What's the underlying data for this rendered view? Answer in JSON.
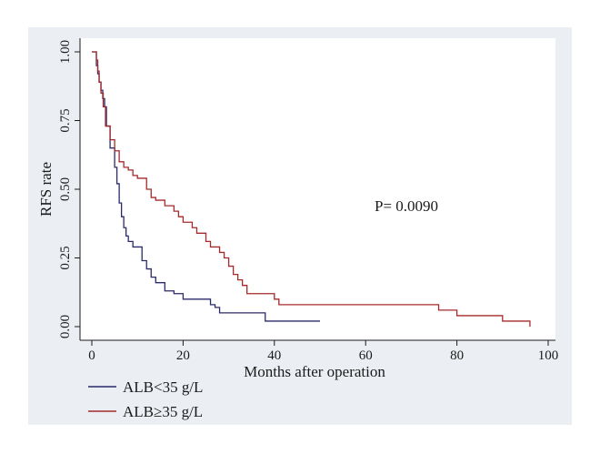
{
  "chart_data": {
    "type": "line",
    "step": true,
    "title": "",
    "xlabel": "Months after operation",
    "ylabel": "RFS rate",
    "xlim": [
      0,
      100
    ],
    "ylim": [
      0,
      1
    ],
    "xticks": [
      0,
      20,
      40,
      60,
      80,
      100
    ],
    "xtick_labels": [
      "0",
      "20",
      "40",
      "60",
      "80",
      "100"
    ],
    "yticks": [
      0,
      0.25,
      0.5,
      0.75,
      1
    ],
    "ytick_labels": [
      "0.00",
      "0.25",
      "0.50",
      "0.75",
      "1.00"
    ],
    "grid": false,
    "annotation": "P= 0.0090",
    "legend_position": "bottom-left",
    "series": [
      {
        "name": "ALB<35 g/L",
        "color": "#2b2a6b",
        "x": [
          0,
          1,
          1.3,
          1.6,
          2,
          2.4,
          2.8,
          3.2,
          4,
          5,
          5.5,
          6,
          6.5,
          7,
          7.5,
          8,
          9,
          11,
          12,
          13,
          14,
          16,
          18,
          20,
          26,
          27,
          28,
          32,
          38,
          50
        ],
        "y": [
          1,
          0.95,
          0.92,
          0.89,
          0.86,
          0.83,
          0.8,
          0.73,
          0.65,
          0.58,
          0.52,
          0.45,
          0.4,
          0.36,
          0.33,
          0.31,
          0.29,
          0.24,
          0.21,
          0.18,
          0.16,
          0.13,
          0.12,
          0.1,
          0.08,
          0.07,
          0.05,
          0.05,
          0.02,
          0.02
        ]
      },
      {
        "name": "ALB≥35 g/L",
        "color": "#a52a2a",
        "x": [
          0,
          1,
          1.3,
          1.6,
          2,
          2.5,
          3,
          4,
          5,
          6,
          7,
          8,
          9,
          10,
          12,
          13,
          14,
          16,
          18,
          19,
          20,
          22,
          23,
          25,
          26,
          28,
          29,
          30,
          31,
          32,
          33,
          34,
          40,
          41,
          75,
          76,
          80,
          90,
          91,
          96
        ],
        "y": [
          1,
          0.97,
          0.93,
          0.89,
          0.85,
          0.8,
          0.73,
          0.68,
          0.64,
          0.6,
          0.58,
          0.57,
          0.55,
          0.54,
          0.5,
          0.47,
          0.46,
          0.44,
          0.42,
          0.4,
          0.38,
          0.36,
          0.34,
          0.31,
          0.29,
          0.27,
          0.25,
          0.22,
          0.19,
          0.17,
          0.15,
          0.12,
          0.1,
          0.08,
          0.08,
          0.06,
          0.04,
          0.02,
          0.02,
          0
        ]
      }
    ]
  }
}
